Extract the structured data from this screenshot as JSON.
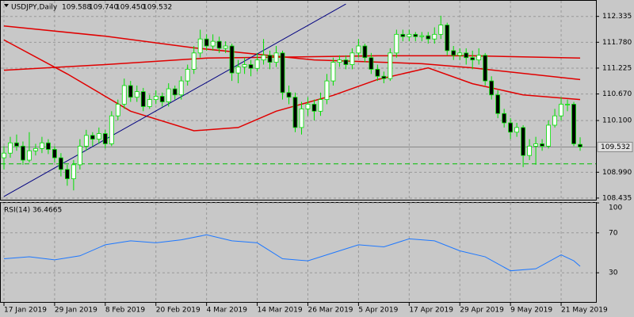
{
  "chart_data": {
    "type": "candlestick",
    "header_symbol": "USDJPY,Daily",
    "header_values": [
      "109.588",
      "109.740",
      "109.450",
      "109.532"
    ],
    "background": "#c8c8c8",
    "bull_color": "#ffffff",
    "bear_color": "#000000",
    "wick_color": "#00e000",
    "open": [
      109.3,
      109.4,
      109.62,
      109.55,
      109.25,
      109.45,
      109.5,
      109.62,
      109.48,
      109.3,
      109.05,
      108.85,
      109.15,
      109.55,
      109.78,
      109.7,
      109.82,
      109.6,
      110.2,
      110.45,
      110.85,
      110.6,
      110.72,
      110.4,
      110.55,
      110.62,
      110.5,
      110.78,
      110.65,
      110.95,
      111.2,
      111.55,
      111.85,
      111.7,
      111.8,
      111.65,
      111.7,
      111.12,
      111.25,
      111.3,
      111.22,
      111.4,
      111.5,
      111.35,
      111.55,
      110.7,
      110.6,
      109.95,
      110.35,
      110.45,
      110.3,
      110.55,
      110.95,
      111.35,
      111.4,
      111.3,
      111.55,
      111.7,
      111.45,
      111.2,
      111.05,
      111.0,
      111.55,
      111.95,
      111.9,
      111.95,
      111.9,
      111.92,
      111.85,
      111.95,
      112.15,
      111.6,
      111.5,
      111.55,
      111.45,
      111.4,
      111.5,
      110.95,
      110.65,
      110.25,
      110.05,
      109.85,
      109.95,
      109.35,
      109.55,
      109.6,
      109.55,
      110.0,
      110.2,
      110.45,
      110.45,
      109.588
    ],
    "high": [
      109.55,
      109.75,
      109.8,
      109.65,
      109.85,
      109.6,
      109.75,
      109.7,
      109.55,
      109.4,
      109.15,
      109.25,
      109.7,
      109.9,
      109.85,
      109.95,
      109.9,
      110.3,
      110.55,
      111.0,
      110.95,
      110.85,
      110.8,
      110.65,
      110.75,
      110.7,
      110.9,
      110.85,
      111.05,
      111.3,
      111.7,
      112.05,
      111.95,
      111.95,
      111.9,
      111.8,
      111.75,
      111.4,
      111.45,
      111.4,
      111.55,
      111.85,
      111.6,
      111.7,
      111.6,
      110.85,
      110.7,
      110.5,
      110.6,
      110.55,
      110.7,
      111.1,
      111.45,
      111.5,
      111.5,
      111.65,
      111.85,
      111.75,
      111.55,
      111.3,
      111.15,
      111.65,
      112.05,
      112.05,
      112.05,
      112.0,
      112.0,
      112.0,
      112.1,
      112.35,
      112.2,
      111.7,
      111.65,
      111.65,
      111.6,
      111.65,
      111.55,
      111.05,
      110.75,
      110.35,
      110.15,
      110.05,
      110.0,
      109.7,
      109.75,
      109.7,
      110.1,
      110.35,
      110.6,
      110.55,
      110.5,
      109.74
    ],
    "low": [
      109.05,
      109.3,
      109.45,
      109.15,
      109.2,
      109.35,
      109.4,
      109.38,
      109.2,
      108.9,
      108.7,
      108.6,
      109.05,
      109.45,
      109.55,
      109.6,
      109.5,
      109.55,
      110.1,
      110.35,
      110.5,
      110.5,
      110.3,
      110.35,
      110.45,
      110.4,
      110.4,
      110.55,
      110.55,
      110.85,
      111.1,
      111.45,
      111.6,
      111.6,
      111.55,
      111.55,
      110.95,
      110.9,
      111.1,
      111.05,
      111.15,
      111.3,
      111.2,
      111.25,
      110.55,
      110.45,
      109.85,
      109.8,
      110.2,
      110.1,
      110.2,
      110.45,
      110.85,
      111.25,
      111.2,
      111.2,
      111.45,
      111.35,
      111.1,
      110.95,
      110.9,
      110.95,
      111.45,
      111.8,
      111.8,
      111.8,
      111.8,
      111.75,
      111.75,
      111.85,
      111.5,
      111.4,
      111.4,
      111.3,
      111.2,
      111.3,
      110.85,
      110.55,
      110.15,
      109.95,
      109.7,
      109.75,
      109.1,
      109.25,
      109.15,
      109.45,
      109.5,
      109.95,
      110.1,
      110.3,
      109.55,
      109.45
    ],
    "close": [
      109.4,
      109.62,
      109.55,
      109.25,
      109.45,
      109.5,
      109.62,
      109.48,
      109.3,
      109.05,
      108.85,
      109.15,
      109.55,
      109.78,
      109.7,
      109.82,
      109.6,
      110.2,
      110.45,
      110.85,
      110.6,
      110.72,
      110.4,
      110.55,
      110.62,
      110.5,
      110.78,
      110.65,
      110.95,
      111.2,
      111.55,
      111.85,
      111.7,
      111.8,
      111.65,
      111.7,
      111.12,
      111.25,
      111.3,
      111.22,
      111.4,
      111.5,
      111.35,
      111.55,
      110.7,
      110.6,
      109.95,
      110.35,
      110.45,
      110.3,
      110.55,
      110.95,
      111.35,
      111.4,
      111.3,
      111.55,
      111.7,
      111.45,
      111.2,
      111.05,
      111.0,
      111.55,
      111.95,
      111.9,
      111.95,
      111.9,
      111.92,
      111.85,
      111.95,
      112.15,
      111.6,
      111.5,
      111.55,
      111.45,
      111.4,
      111.5,
      110.95,
      110.65,
      110.25,
      110.05,
      109.85,
      109.95,
      109.35,
      109.55,
      109.6,
      109.55,
      110.0,
      110.2,
      110.45,
      110.45,
      109.6,
      109.532
    ],
    "lines": [
      {
        "color": "#e00000",
        "x": [
          0,
          16,
          30,
          49,
          66,
          74,
          91
        ],
        "values": [
          112.13,
          111.91,
          111.66,
          111.4,
          111.32,
          111.23,
          110.98
        ]
      },
      {
        "color": "#e00000",
        "x": [
          0,
          16,
          32,
          49,
          59,
          74,
          91
        ],
        "values": [
          111.18,
          111.3,
          111.44,
          111.47,
          111.49,
          111.49,
          111.44
        ]
      },
      {
        "color": "#e00000",
        "x": [
          0,
          10,
          20,
          30,
          37,
          43,
          52,
          59,
          67,
          74,
          82,
          91
        ],
        "values": [
          111.83,
          111.1,
          110.3,
          109.88,
          109.95,
          110.3,
          110.64,
          110.98,
          111.23,
          110.89,
          110.65,
          110.55
        ]
      }
    ],
    "trendline": {
      "color": "#000080",
      "x": [
        0,
        54
      ],
      "values": [
        108.47,
        112.6
      ]
    },
    "level_line": {
      "color": "#00c000",
      "value": 109.17
    },
    "last_price": 109.532,
    "ylim": [
      108.4,
      112.67
    ],
    "yticks": [
      112.335,
      {
        "value": 111.78,
        "label": "111.780"
      },
      111.225,
      {
        "value": 110.67,
        "label": "110.670"
      },
      {
        "value": 110.1,
        "label": "110.100"
      },
      {
        "value": 108.99,
        "label": "108.990"
      },
      108.435
    ],
    "xlim": [
      -0.5,
      93.5
    ],
    "xticks": [
      {
        "value": 0,
        "label": "17 Jan 2019"
      },
      {
        "value": 8,
        "label": "29 Jan 2019"
      },
      {
        "value": 16,
        "label": "8 Feb 2019"
      },
      {
        "value": 24,
        "label": "20 Feb 2019"
      },
      {
        "value": 32,
        "label": "4 Mar 2019"
      },
      {
        "value": 40,
        "label": "14 Mar 2019"
      },
      {
        "value": 48,
        "label": "26 Mar 2019"
      },
      {
        "value": 56,
        "label": "5 Apr 2019"
      },
      {
        "value": 64,
        "label": "17 Apr 2019"
      },
      {
        "value": 72,
        "label": "29 Apr 2019"
      },
      {
        "value": 80,
        "label": "9 May 2019"
      },
      {
        "value": 88,
        "label": "21 May 2019"
      }
    ],
    "rsi": {
      "title": "RSI(14) 36.4665",
      "color": "#1e78ff",
      "x": [
        0,
        4,
        8,
        12,
        16,
        20,
        24,
        28,
        32,
        36,
        40,
        44,
        48,
        52,
        56,
        60,
        64,
        68,
        72,
        76,
        80,
        84,
        88,
        90,
        91
      ],
      "values": [
        44,
        46,
        43,
        47,
        58,
        62,
        60,
        63,
        68,
        62,
        60,
        44,
        42,
        50,
        58,
        56,
        64,
        62,
        52,
        46,
        32,
        34,
        48,
        42,
        36.4665
      ],
      "ylim": [
        0,
        100
      ],
      "yticks": [
        100,
        70,
        30
      ]
    }
  }
}
